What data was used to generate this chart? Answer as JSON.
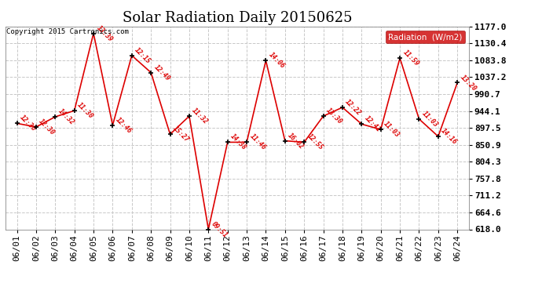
{
  "title": "Solar Radiation Daily 20150625",
  "copyright": "Copyright 2015 Cartronics.com",
  "ylabel": "Radiation  (W/m2)",
  "background_color": "#ffffff",
  "plot_bg_color": "#ffffff",
  "grid_color": "#c8c8c8",
  "line_color": "#dd0000",
  "ylim": [
    618.0,
    1177.0
  ],
  "yticks": [
    618.0,
    664.6,
    711.2,
    757.8,
    804.3,
    850.9,
    897.5,
    944.1,
    990.7,
    1037.2,
    1083.8,
    1130.4,
    1177.0
  ],
  "dates": [
    "06/01",
    "06/02",
    "06/03",
    "06/04",
    "06/05",
    "06/06",
    "06/07",
    "06/08",
    "06/09",
    "06/10",
    "06/11",
    "06/12",
    "06/13",
    "06/14",
    "06/15",
    "06/16",
    "06/17",
    "06/18",
    "06/19",
    "06/20",
    "06/21",
    "06/22",
    "06/23",
    "06/24"
  ],
  "values": [
    910,
    900,
    928,
    945,
    1158,
    905,
    1097,
    1050,
    880,
    930,
    618,
    858,
    858,
    1083,
    862,
    858,
    930,
    954,
    908,
    893,
    1090,
    922,
    874,
    1022
  ],
  "time_labels": [
    "12:36",
    "12:30",
    "14:32",
    "11:30",
    "13:39",
    "12:46",
    "12:15",
    "12:49",
    "15:27",
    "11:32",
    "09:51",
    "14:38",
    "11:46",
    "14:06",
    "16:02",
    "12:55",
    "13:30",
    "12:22",
    "12:41",
    "11:03",
    "11:59",
    "11:03",
    "14:16",
    "13:20"
  ],
  "legend_bg": "#cc0000",
  "legend_text_color": "#ffffff",
  "title_fontsize": 13,
  "tick_fontsize": 8,
  "label_fontsize": 7
}
